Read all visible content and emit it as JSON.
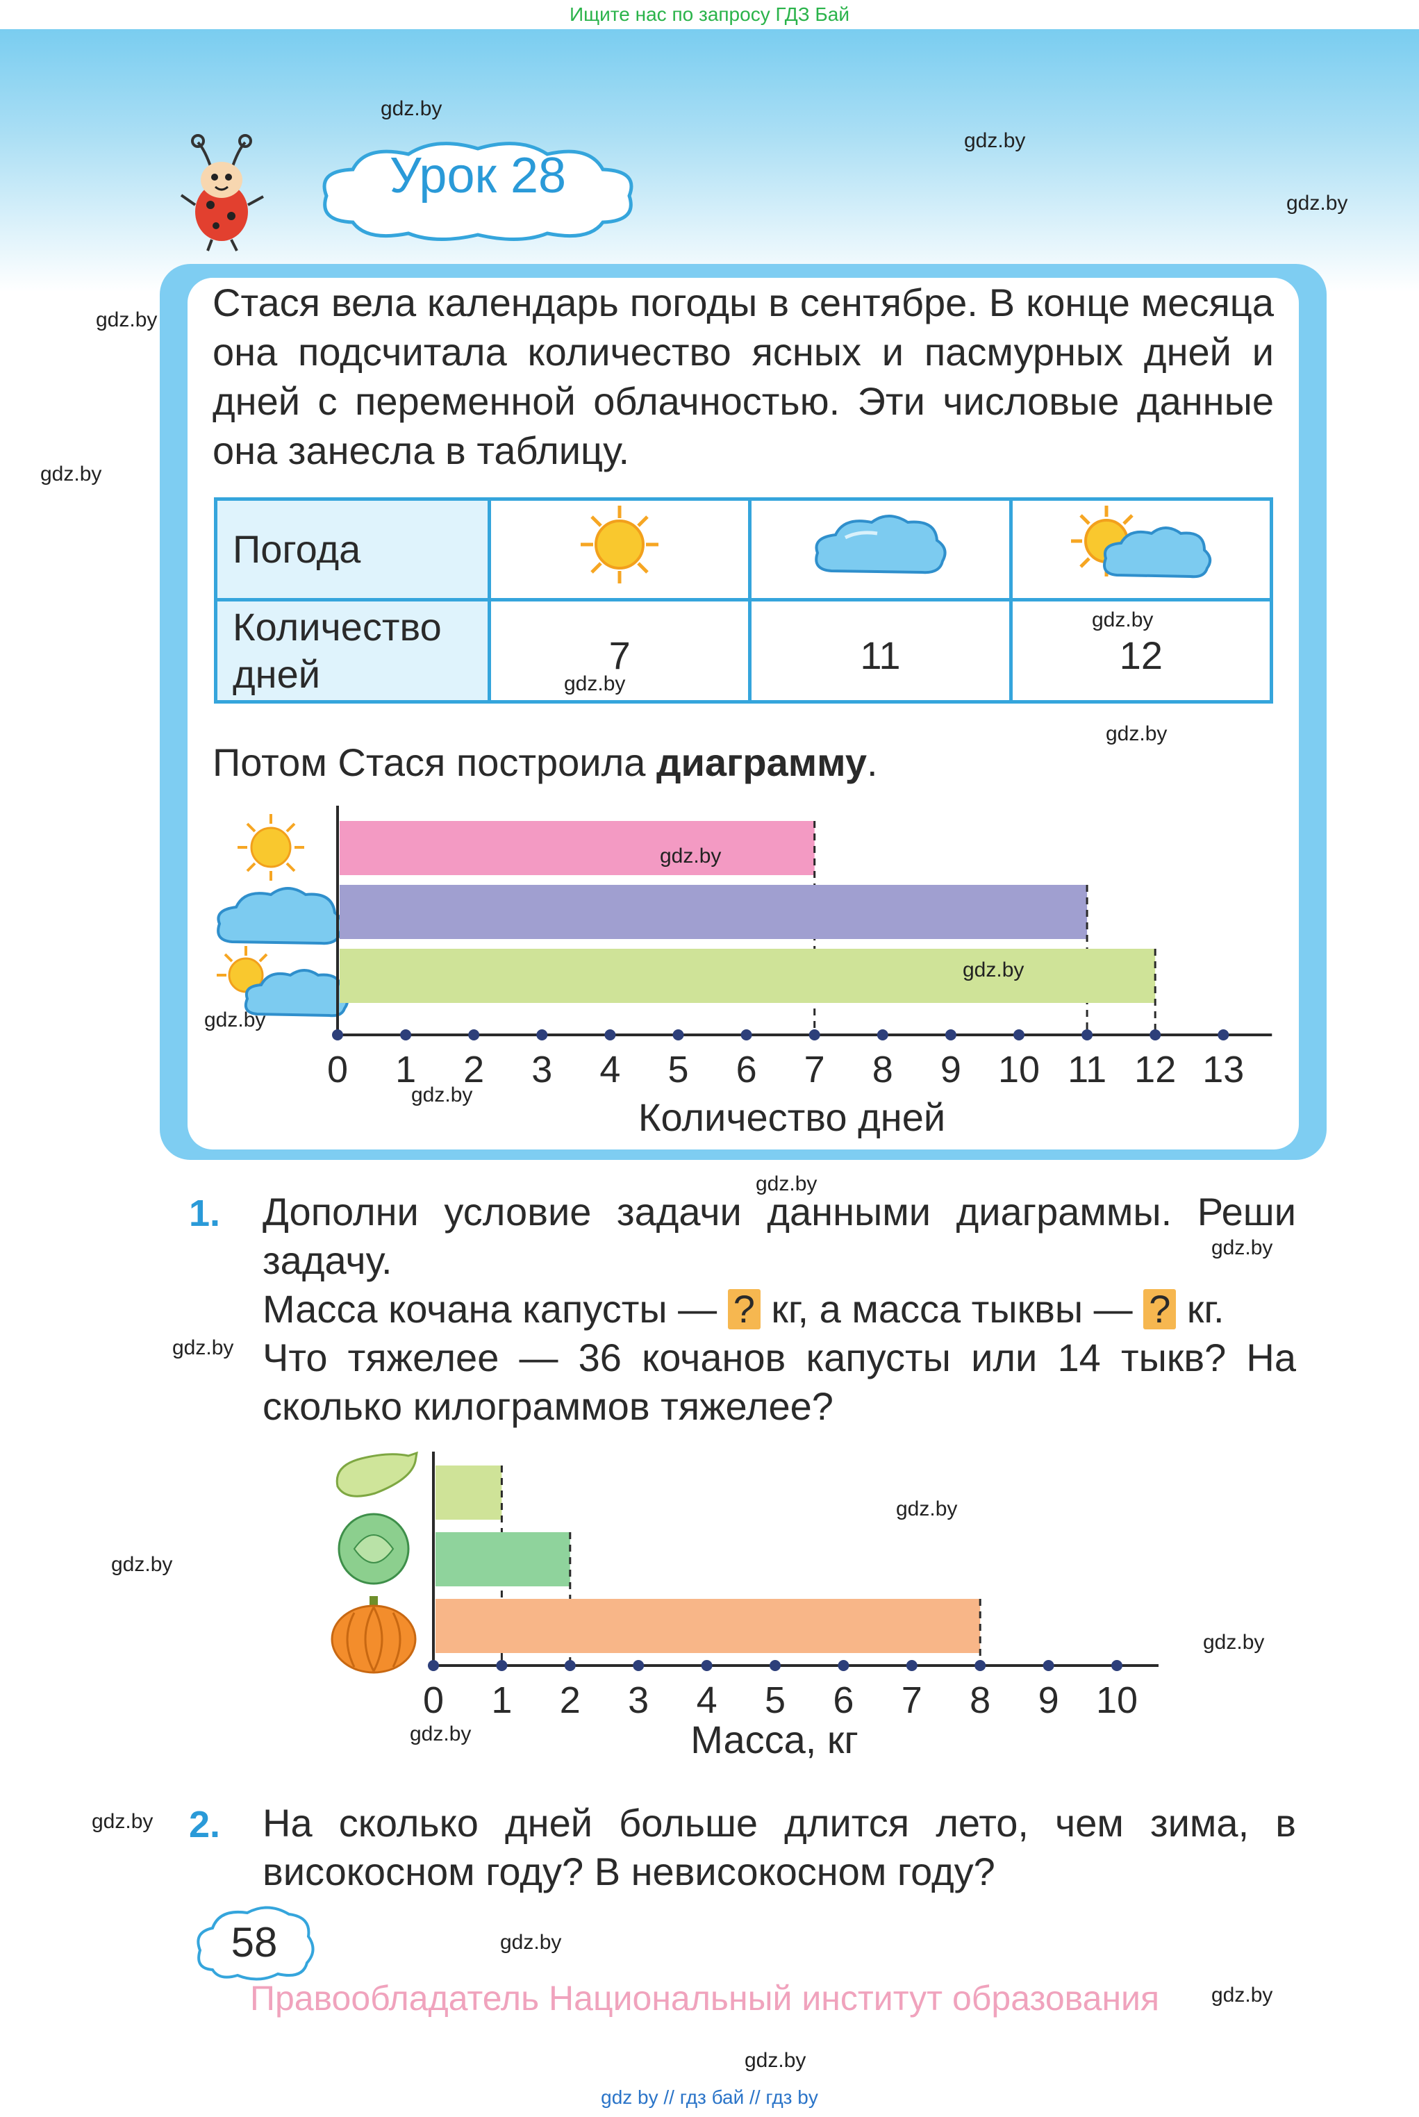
{
  "top_notice": "Ищите нас по запросу ГДЗ Бай",
  "watermark": "gdz.by",
  "lesson": {
    "title": "Урок 28"
  },
  "intro": {
    "text": "Стася вела календарь погоды в сентябре. В конце ме­сяца она подсчитала количество ясных и пасмурных дней и дней с переменной облачностью. Эти числовые данные она занесла в таблицу."
  },
  "weather_table": {
    "row1_header": "Погода",
    "row2_header": "Количество дней",
    "icons": [
      "sun-icon",
      "cloud-icon",
      "sun-cloud-icon"
    ],
    "values": [
      "7",
      "11",
      "12"
    ]
  },
  "then_text": {
    "before": "Потом Стася построила ",
    "bold": "диаграмму",
    "after": "."
  },
  "chart_data": [
    {
      "type": "bar",
      "orientation": "horizontal",
      "categories": [
        "sun-icon",
        "cloud-icon",
        "sun-cloud-icon"
      ],
      "values": [
        7,
        11,
        12
      ],
      "colors": [
        "#f39ac3",
        "#a09fd0",
        "#cfe398"
      ],
      "xlabel": "Количество дней",
      "xlim": [
        0,
        13
      ],
      "ticks": [
        "0",
        "1",
        "2",
        "3",
        "4",
        "5",
        "6",
        "7",
        "8",
        "9",
        "10",
        "11",
        "12",
        "13"
      ]
    },
    {
      "type": "bar",
      "orientation": "horizontal",
      "categories": [
        "zucchini-icon",
        "cabbage-icon",
        "pumpkin-icon"
      ],
      "values": [
        1,
        2,
        8
      ],
      "colors": [
        "#cfe398",
        "#8fd39c",
        "#f8b688"
      ],
      "xlabel": "Масса, кг",
      "xlim": [
        0,
        10
      ],
      "ticks": [
        "0",
        "1",
        "2",
        "3",
        "4",
        "5",
        "6",
        "7",
        "8",
        "9",
        "10"
      ]
    }
  ],
  "task1": {
    "number": "1.",
    "line1": "Дополни условие задачи данными диаграммы. Реши задачу.",
    "line2_a": "Масса кочана капусты — ",
    "q": "?",
    "line2_b": " кг, а масса тыквы — ",
    "line2_c": " кг.",
    "line3": "Что тяжелее — 36 кочанов капусты или 14 тыкв? На сколько килограммов тяжелее?"
  },
  "task2": {
    "number": "2.",
    "text": "На сколько дней больше длится лето, чем зима, в високосном году? В невисокосном году?"
  },
  "page_number": "58",
  "copyright": "Правообладатель Национальный институт образования",
  "bottom_links": "gdz by  //  гдз бай  //  гдз by"
}
